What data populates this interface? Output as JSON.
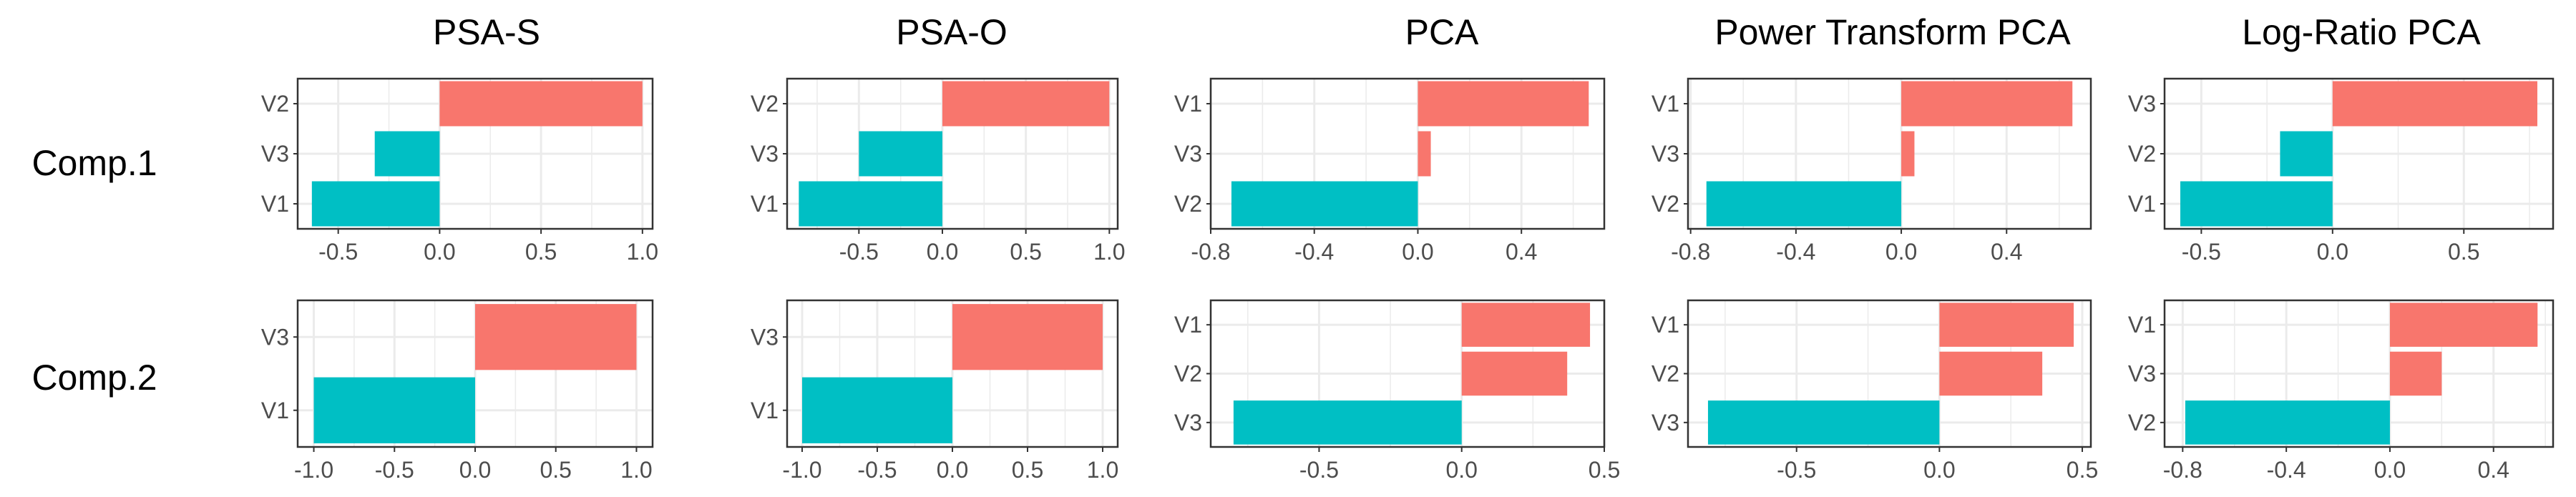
{
  "colors": {
    "positive": "#F8766D",
    "negative": "#00BFC4",
    "grid": "#EBEBEB",
    "panel_border": "#333333",
    "text": "#000000",
    "tick_text": "#4D4D4D"
  },
  "column_titles": [
    "PSA-S",
    "PSA-O",
    "PCA",
    "Power Transform PCA",
    "Log-Ratio PCA"
  ],
  "row_labels": [
    "Comp.1",
    "Comp.2"
  ],
  "chart_data": [
    {
      "type": "bar",
      "orientation": "horizontal",
      "title": "PSA-S",
      "row": "Comp.1",
      "categories": [
        "V2",
        "V3",
        "V1"
      ],
      "values": [
        1.0,
        -0.32,
        -0.63
      ],
      "xlim": [
        -0.7,
        1.05
      ],
      "xticks": [
        -0.5,
        0.0,
        0.5,
        1.0
      ],
      "xtick_labels": [
        "-0.5",
        "0.0",
        "0.5",
        "1.0"
      ]
    },
    {
      "type": "bar",
      "orientation": "horizontal",
      "title": "PSA-O",
      "row": "Comp.1",
      "categories": [
        "V2",
        "V3",
        "V1"
      ],
      "values": [
        1.0,
        -0.5,
        -0.86
      ],
      "xlim": [
        -0.93,
        1.05
      ],
      "xticks": [
        -0.5,
        0.0,
        0.5,
        1.0
      ],
      "xtick_labels": [
        "-0.5",
        "0.0",
        "0.5",
        "1.0"
      ]
    },
    {
      "type": "bar",
      "orientation": "horizontal",
      "title": "PCA",
      "row": "Comp.1",
      "categories": [
        "V1",
        "V3",
        "V2"
      ],
      "values": [
        0.66,
        0.05,
        -0.72
      ],
      "xlim": [
        -0.8,
        0.72
      ],
      "xticks": [
        -0.8,
        -0.4,
        0.0,
        0.4
      ],
      "xtick_labels": [
        "-0.8",
        "-0.4",
        "0.0",
        "0.4"
      ]
    },
    {
      "type": "bar",
      "orientation": "horizontal",
      "title": "Power Transform PCA",
      "row": "Comp.1",
      "categories": [
        "V1",
        "V3",
        "V2"
      ],
      "values": [
        0.65,
        0.05,
        -0.74
      ],
      "xlim": [
        -0.81,
        0.72
      ],
      "xticks": [
        -0.8,
        -0.4,
        0.0,
        0.4
      ],
      "xtick_labels": [
        "-0.8",
        "-0.4",
        "0.0",
        "0.4"
      ]
    },
    {
      "type": "bar",
      "orientation": "horizontal",
      "title": "Log-Ratio PCA",
      "row": "Comp.1",
      "categories": [
        "V3",
        "V2",
        "V1"
      ],
      "values": [
        0.78,
        -0.2,
        -0.58
      ],
      "xlim": [
        -0.64,
        0.84
      ],
      "xticks": [
        -0.5,
        0.0,
        0.5
      ],
      "xtick_labels": [
        "-0.5",
        "0.0",
        "0.5"
      ]
    },
    {
      "type": "bar",
      "orientation": "horizontal",
      "title": "PSA-S",
      "row": "Comp.2",
      "categories": [
        "V3",
        "V1"
      ],
      "values": [
        1.0,
        -1.0
      ],
      "xlim": [
        -1.1,
        1.1
      ],
      "xticks": [
        -1.0,
        -0.5,
        0.0,
        0.5,
        1.0
      ],
      "xtick_labels": [
        "-1.0",
        "-0.5",
        "0.0",
        "0.5",
        "1.0"
      ]
    },
    {
      "type": "bar",
      "orientation": "horizontal",
      "title": "PSA-O",
      "row": "Comp.2",
      "categories": [
        "V3",
        "V1"
      ],
      "values": [
        1.0,
        -1.0
      ],
      "xlim": [
        -1.1,
        1.1
      ],
      "xticks": [
        -1.0,
        -0.5,
        0.0,
        0.5,
        1.0
      ],
      "xtick_labels": [
        "-1.0",
        "-0.5",
        "0.0",
        "0.5",
        "1.0"
      ]
    },
    {
      "type": "bar",
      "orientation": "horizontal",
      "title": "PCA",
      "row": "Comp.2",
      "categories": [
        "V1",
        "V2",
        "V3"
      ],
      "values": [
        0.45,
        0.37,
        -0.8
      ],
      "xlim": [
        -0.88,
        0.5
      ],
      "xticks": [
        -0.5,
        0.0,
        0.5
      ],
      "xtick_labels": [
        "-0.5",
        "0.0",
        "0.5"
      ]
    },
    {
      "type": "bar",
      "orientation": "horizontal",
      "title": "Power Transform PCA",
      "row": "Comp.2",
      "categories": [
        "V1",
        "V2",
        "V3"
      ],
      "values": [
        0.47,
        0.36,
        -0.81
      ],
      "xlim": [
        -0.88,
        0.53
      ],
      "xticks": [
        -0.5,
        0.0,
        0.5
      ],
      "xtick_labels": [
        "-0.5",
        "0.0",
        "0.5"
      ]
    },
    {
      "type": "bar",
      "orientation": "horizontal",
      "title": "Log-Ratio PCA",
      "row": "Comp.2",
      "categories": [
        "V1",
        "V3",
        "V2"
      ],
      "values": [
        0.57,
        0.2,
        -0.79
      ],
      "xlim": [
        -0.87,
        0.63
      ],
      "xticks": [
        -0.8,
        -0.4,
        0.0,
        0.4
      ],
      "xtick_labels": [
        "-0.8",
        "-0.4",
        "0.0",
        "0.4"
      ]
    }
  ]
}
